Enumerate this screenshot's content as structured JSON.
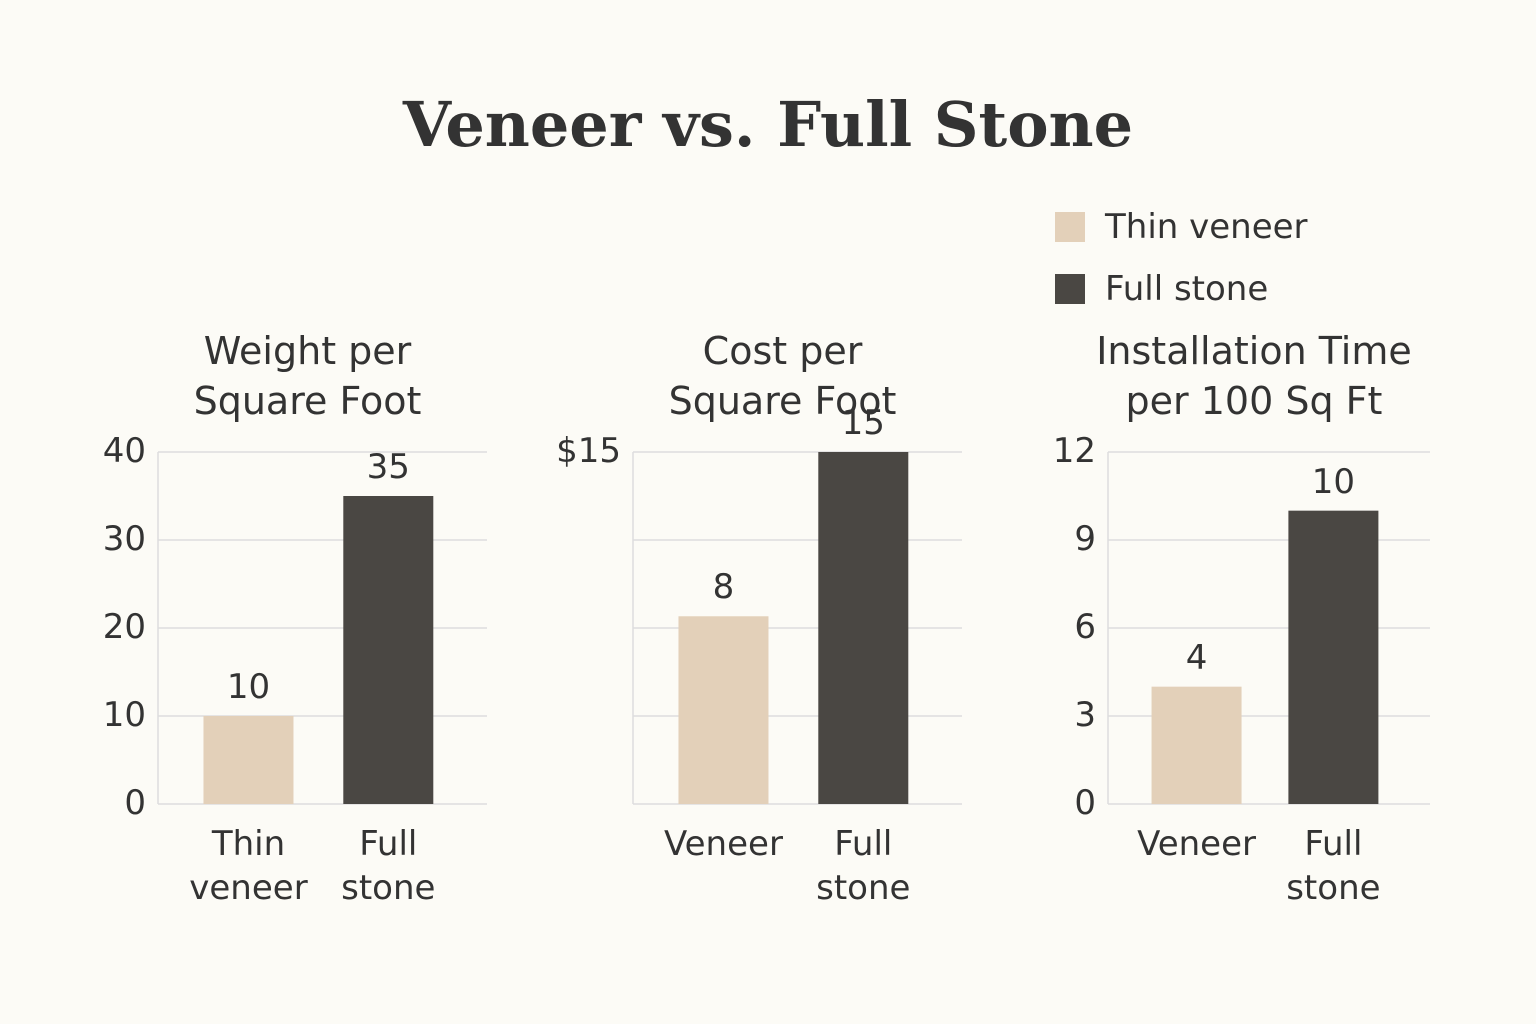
{
  "title": "Veneer vs. Full Stone",
  "legend": [
    {
      "name": "Thin veneer",
      "color": "#e3d0b9"
    },
    {
      "name": "Full stone",
      "color": "#4a4743"
    }
  ],
  "chart_data": [
    {
      "type": "bar",
      "title": "Weight per\nSquare Foot",
      "categories": [
        "Thin\nveneer",
        "Full\nstone"
      ],
      "values": [
        10,
        35
      ],
      "ylim": [
        0,
        40
      ],
      "yticks": [
        0,
        10,
        20,
        30,
        40
      ],
      "grid": true
    },
    {
      "type": "bar",
      "title": "Cost per\nSquare Foot",
      "categories": [
        "Veneer",
        "Full\nstone"
      ],
      "values": [
        8,
        15
      ],
      "ylim": [
        0,
        15
      ],
      "yticks": [
        {
          "value": 0,
          "label": null
        },
        {
          "value": 3.75,
          "label": null
        },
        {
          "value": 7.5,
          "label": null
        },
        {
          "value": 11.25,
          "label": null
        },
        {
          "value": 15,
          "label": "$15"
        }
      ],
      "grid": true
    },
    {
      "type": "bar",
      "title": "Installation Time\n per 100 Sq Ft",
      "categories": [
        "Veneer",
        "Full\nstone"
      ],
      "values": [
        4,
        10
      ],
      "ylim": [
        0,
        12
      ],
      "yticks": [
        0,
        3,
        6,
        9,
        12
      ],
      "grid": true
    }
  ]
}
